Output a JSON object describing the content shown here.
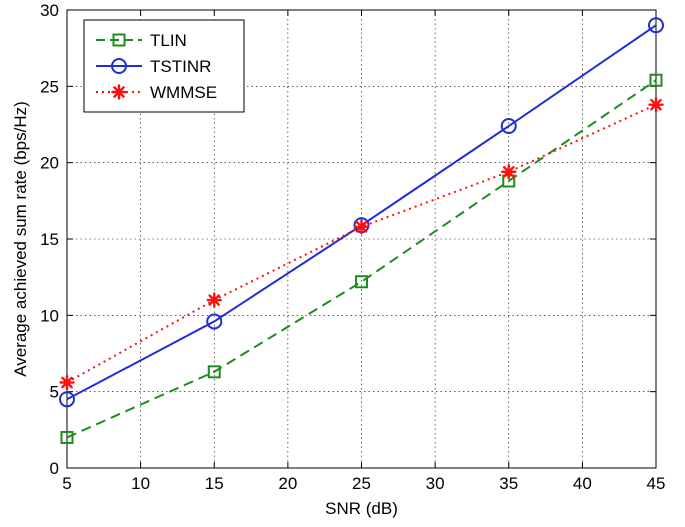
{
  "chart_data": {
    "type": "line",
    "title": "",
    "xlabel": "SNR (dB)",
    "ylabel": "Average achieved sum rate (bps/Hz)",
    "xlim": [
      5,
      45
    ],
    "ylim": [
      0,
      30
    ],
    "xticks": [
      5,
      10,
      15,
      20,
      25,
      30,
      35,
      40,
      45
    ],
    "yticks": [
      0,
      5,
      10,
      15,
      20,
      25,
      30
    ],
    "grid": true,
    "legend_position": "top-left",
    "x": [
      5,
      15,
      25,
      35,
      45
    ],
    "series": [
      {
        "name": "TLIN",
        "values": [
          2.0,
          6.3,
          12.2,
          18.8,
          25.4
        ],
        "color": "#1e8c1e",
        "line_style": "dashed",
        "marker": "square"
      },
      {
        "name": "TSTINR",
        "values": [
          4.5,
          9.6,
          15.9,
          22.4,
          29.0
        ],
        "color": "#1f2fd6",
        "line_style": "solid",
        "marker": "circle"
      },
      {
        "name": "WMMSE",
        "values": [
          5.6,
          11.0,
          15.8,
          19.4,
          23.8
        ],
        "color": "#ff1010",
        "line_style": "dotted",
        "marker": "asterisk"
      }
    ]
  }
}
